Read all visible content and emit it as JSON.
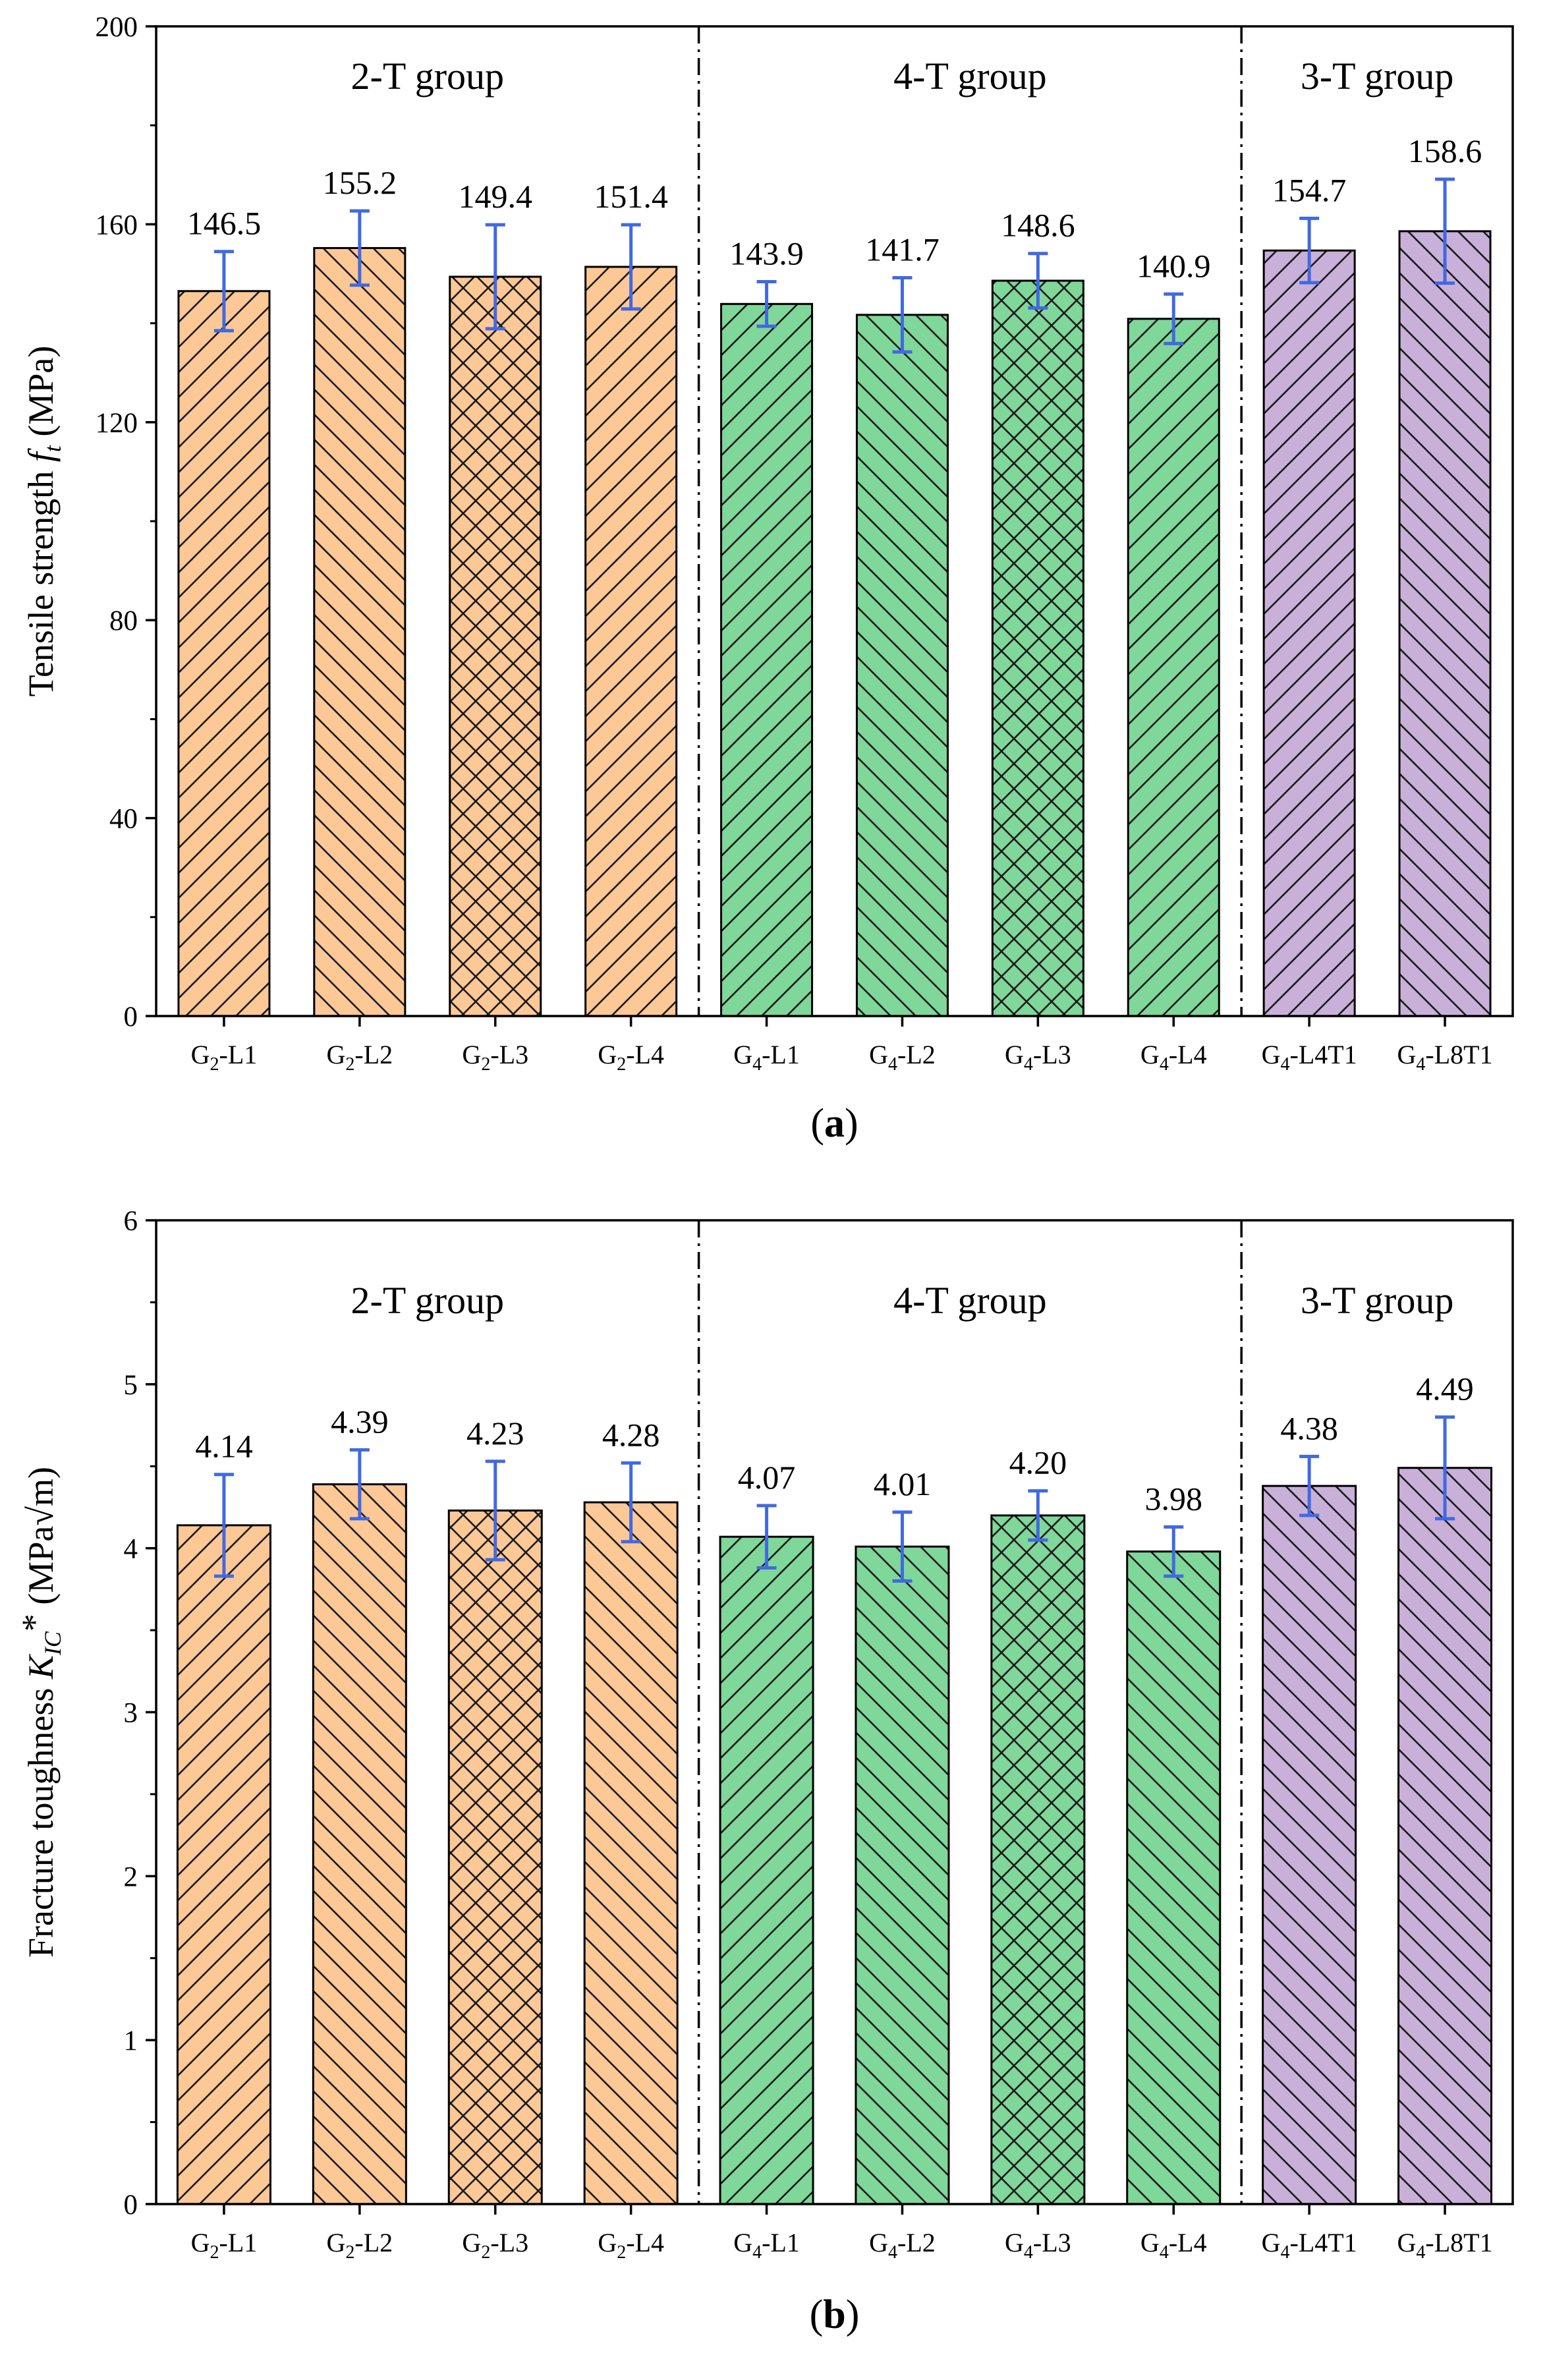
{
  "figure": {
    "colors": {
      "orange": "#fcc895",
      "green": "#7fd79a",
      "purple": "#c9b0d9",
      "error_bar": "#4169e1",
      "axis": "#000000"
    },
    "panels": [
      {
        "caption": "a",
        "chart_data": {
          "type": "bar",
          "title": "",
          "xlabel": "",
          "ylabel_prefix": "Tensile strength ",
          "ylabel_symbol": "f",
          "ylabel_sub": "t",
          "ylabel_sup": "",
          "ylabel_suffix": " (MPa)",
          "ylim": [
            0,
            200
          ],
          "yticks": [
            0,
            40,
            80,
            120,
            160,
            200
          ],
          "categories": [
            {
              "main": "G",
              "sub": "2",
              "rest": "-L1"
            },
            {
              "main": "G",
              "sub": "2",
              "rest": "-L2"
            },
            {
              "main": "G",
              "sub": "2",
              "rest": "-L3"
            },
            {
              "main": "G",
              "sub": "2",
              "rest": "-L4"
            },
            {
              "main": "G",
              "sub": "4",
              "rest": "-L1"
            },
            {
              "main": "G",
              "sub": "4",
              "rest": "-L2"
            },
            {
              "main": "G",
              "sub": "4",
              "rest": "-L3"
            },
            {
              "main": "G",
              "sub": "4",
              "rest": "-L4"
            },
            {
              "main": "G",
              "sub": "4",
              "rest": "-L4T1"
            },
            {
              "main": "G",
              "sub": "4",
              "rest": "-L8T1"
            }
          ],
          "values": [
            146.5,
            155.2,
            149.4,
            151.4,
            143.9,
            141.7,
            148.6,
            140.9,
            154.7,
            158.6
          ],
          "value_labels": [
            "146.5",
            "155.2",
            "149.4",
            "151.4",
            "143.9",
            "141.7",
            "148.6",
            "140.9",
            "154.7",
            "158.6"
          ],
          "errors": [
            8,
            7.5,
            10.5,
            8.5,
            4.5,
            7.5,
            5.5,
            5.0,
            6.5,
            10.5
          ],
          "patterns": [
            "fwd",
            "back",
            "cross",
            "fwd",
            "fwd",
            "back",
            "cross",
            "fwd",
            "fwd",
            "back"
          ],
          "colors": [
            "orange",
            "orange",
            "orange",
            "orange",
            "green",
            "green",
            "green",
            "green",
            "purple",
            "purple"
          ],
          "groups": [
            {
              "label": "2-T group",
              "start": 0,
              "end": 3
            },
            {
              "label": "4-T group",
              "start": 4,
              "end": 7
            },
            {
              "label": "3-T group",
              "start": 8,
              "end": 9
            }
          ],
          "dividers_after": [
            3,
            7
          ]
        }
      },
      {
        "caption": "b",
        "chart_data": {
          "type": "bar",
          "title": "",
          "xlabel": "",
          "ylabel_prefix": "Fracture toughness ",
          "ylabel_symbol": "K",
          "ylabel_sub": "IC",
          "ylabel_sup": "*",
          "ylabel_suffix": " (MPa√m)",
          "ylim": [
            0,
            6
          ],
          "yticks": [
            0,
            1,
            2,
            3,
            4,
            5,
            6
          ],
          "categories": [
            {
              "main": "G",
              "sub": "2",
              "rest": "-L1"
            },
            {
              "main": "G",
              "sub": "2",
              "rest": "-L2"
            },
            {
              "main": "G",
              "sub": "2",
              "rest": "-L3"
            },
            {
              "main": "G",
              "sub": "2",
              "rest": "-L4"
            },
            {
              "main": "G",
              "sub": "4",
              "rest": "-L1"
            },
            {
              "main": "G",
              "sub": "4",
              "rest": "-L2"
            },
            {
              "main": "G",
              "sub": "4",
              "rest": "-L3"
            },
            {
              "main": "G",
              "sub": "4",
              "rest": "-L4"
            },
            {
              "main": "G",
              "sub": "4",
              "rest": "-L4T1"
            },
            {
              "main": "G",
              "sub": "4",
              "rest": "-L8T1"
            }
          ],
          "values": [
            4.14,
            4.39,
            4.23,
            4.28,
            4.07,
            4.01,
            4.2,
            3.98,
            4.38,
            4.49
          ],
          "value_labels": [
            "4.14",
            "4.39",
            "4.23",
            "4.28",
            "4.07",
            "4.01",
            "4.20",
            "3.98",
            "4.38",
            "4.49"
          ],
          "errors": [
            0.31,
            0.21,
            0.3,
            0.24,
            0.19,
            0.21,
            0.15,
            0.15,
            0.18,
            0.31
          ],
          "patterns": [
            "fwd",
            "back",
            "cross",
            "back",
            "fwd",
            "back",
            "cross",
            "back",
            "back",
            "back"
          ],
          "colors": [
            "orange",
            "orange",
            "orange",
            "orange",
            "green",
            "green",
            "green",
            "green",
            "purple",
            "purple"
          ],
          "groups": [
            {
              "label": "2-T group",
              "start": 0,
              "end": 3
            },
            {
              "label": "4-T group",
              "start": 4,
              "end": 7
            },
            {
              "label": "3-T group",
              "start": 8,
              "end": 9
            }
          ],
          "dividers_after": [
            3,
            7
          ]
        }
      }
    ]
  }
}
